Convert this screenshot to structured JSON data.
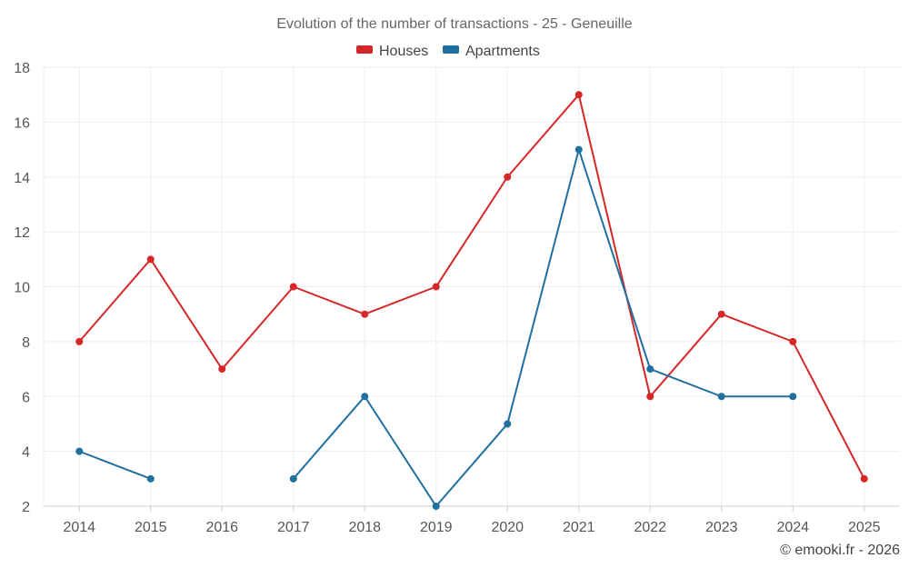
{
  "chart_data": {
    "type": "line",
    "title": "Evolution of the number of transactions - 25 - Geneuille",
    "categories": [
      "2014",
      "2015",
      "2016",
      "2017",
      "2018",
      "2019",
      "2020",
      "2021",
      "2022",
      "2023",
      "2024",
      "2025"
    ],
    "series": [
      {
        "name": "Houses",
        "color": "#d62728",
        "values": [
          8,
          11,
          7,
          10,
          9,
          10,
          14,
          17,
          6,
          9,
          8,
          3
        ]
      },
      {
        "name": "Apartments",
        "color": "#1f6f9f",
        "values": [
          4,
          3,
          null,
          3,
          6,
          2,
          5,
          15,
          7,
          6,
          6,
          null
        ]
      }
    ],
    "ylim": [
      2,
      18
    ],
    "yticks": [
      2,
      4,
      6,
      8,
      10,
      12,
      14,
      16,
      18
    ],
    "xlabel": "",
    "ylabel": "",
    "grid": true,
    "legend_position": "top-center"
  },
  "credit": "© emooki.fr - 2026"
}
